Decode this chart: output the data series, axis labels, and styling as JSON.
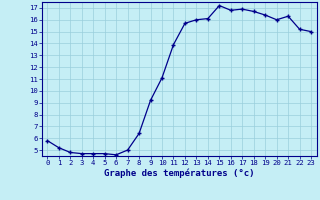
{
  "hours": [
    0,
    1,
    2,
    3,
    4,
    5,
    6,
    7,
    8,
    9,
    10,
    11,
    12,
    13,
    14,
    15,
    16,
    17,
    18,
    19,
    20,
    21,
    22,
    23
  ],
  "temperatures": [
    5.8,
    5.2,
    4.8,
    4.7,
    4.7,
    4.7,
    4.6,
    5.0,
    6.4,
    9.2,
    11.1,
    13.9,
    15.7,
    16.0,
    16.1,
    17.2,
    16.8,
    16.9,
    16.7,
    16.4,
    16.0,
    16.3,
    15.2,
    15.0
  ],
  "xlabel": "Graphe des températures (°c)",
  "ylim": [
    4.5,
    17.5
  ],
  "xlim": [
    -0.5,
    23.5
  ],
  "yticks": [
    5,
    6,
    7,
    8,
    9,
    10,
    11,
    12,
    13,
    14,
    15,
    16,
    17
  ],
  "xticks": [
    0,
    1,
    2,
    3,
    4,
    5,
    6,
    7,
    8,
    9,
    10,
    11,
    12,
    13,
    14,
    15,
    16,
    17,
    18,
    19,
    20,
    21,
    22,
    23
  ],
  "line_color": "#00008b",
  "marker": "+",
  "marker_size": 3.5,
  "bg_color": "#c5eef5",
  "grid_color": "#9acfdc",
  "axis_label_color": "#00008b",
  "tick_label_color": "#00008b",
  "spine_color": "#00008b",
  "xlabel_fontsize": 6.5,
  "tick_fontsize": 5.2
}
